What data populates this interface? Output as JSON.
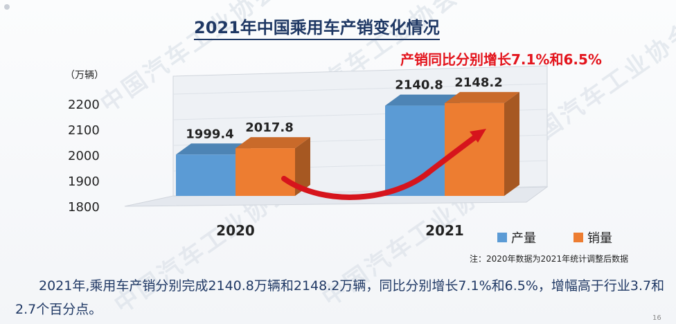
{
  "title": "2021年中国乘用车产销变化情况",
  "callout": "产销同比分别增长7.1%和6.5%",
  "unit_label": "（万辆）",
  "note": "注：2020年数据为2021年统计调整后数据",
  "paragraph": "2021年,乘用车产销分别完成2140.8万辆和2148.2万辆，同比分别增长7.1%和6.5%，增幅高于行业3.7和2.7个百分点。",
  "page_number": "16",
  "watermark": "中国汽车工业协会",
  "chart_data": {
    "type": "bar",
    "categories": [
      "2020",
      "2021"
    ],
    "series": [
      {
        "name": "产量",
        "color": "#5b9bd5",
        "values": [
          1999.4,
          2140.8
        ]
      },
      {
        "name": "销量",
        "color": "#ed7d31",
        "values": [
          2017.8,
          2148.2
        ]
      }
    ],
    "yticks": [
      1800,
      1900,
      2000,
      2100,
      2200
    ],
    "ylim": [
      1800,
      2200
    ],
    "legend_position": "bottom-right"
  }
}
